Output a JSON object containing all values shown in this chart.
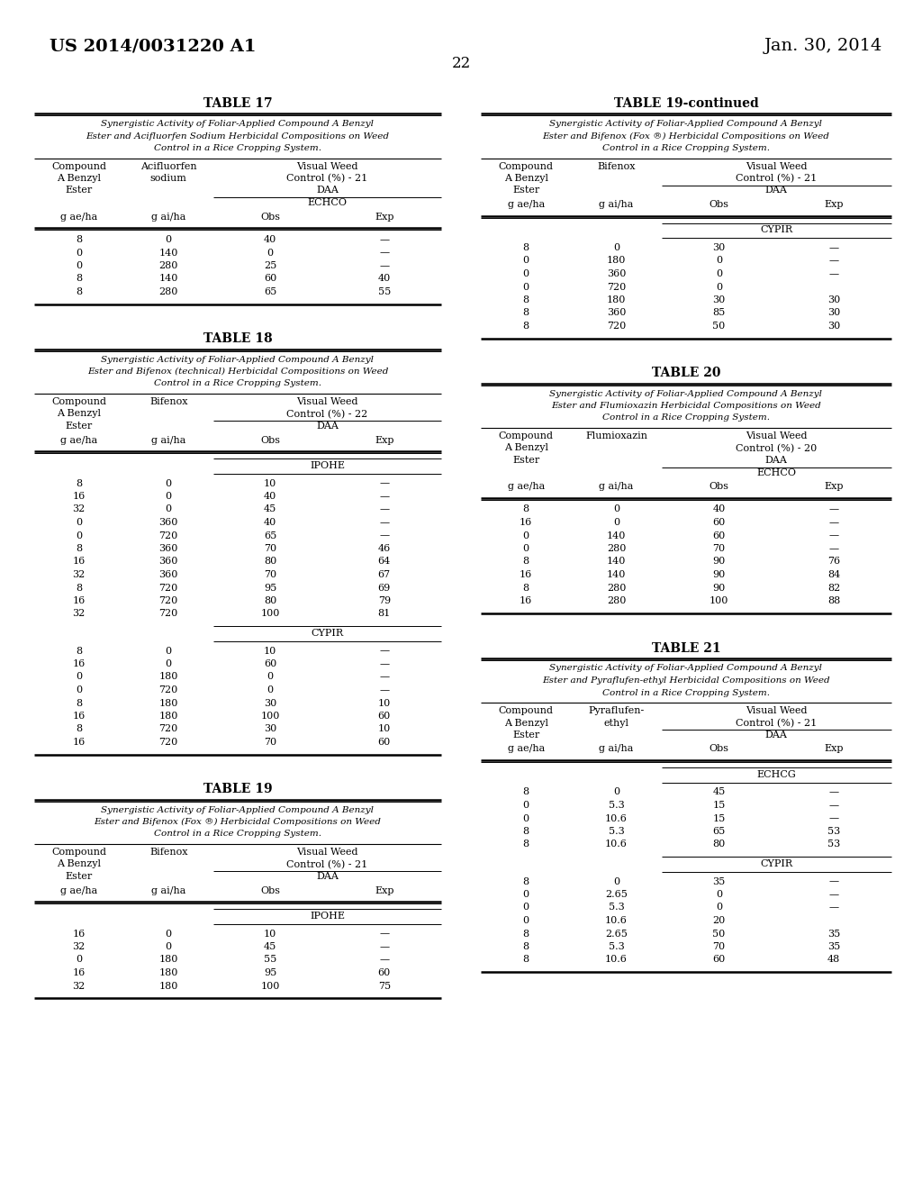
{
  "page_number": "22",
  "patent_left": "US 2014/0031220 A1",
  "patent_right": "Jan. 30, 2014",
  "tables": [
    {
      "id": "TABLE 17",
      "subtitle": [
        "Synergistic Activity of Foliar-Applied Compound A Benzyl",
        "Ester and Acifluorfen Sodium Herbicidal Compositions on Weed",
        "Control in a Rice Cropping System."
      ],
      "col1_header": [
        "Compound",
        "A Benzyl",
        "Ester"
      ],
      "col2_header": [
        "Acifluorfen",
        "sodium"
      ],
      "col34_header": [
        "Visual Weed",
        "Control (%) - 21",
        "DAA",
        "ECHCO"
      ],
      "col1_unit": "g ae/ha",
      "col2_unit": "g ai/ha",
      "col3_unit": "Obs",
      "col4_unit": "Exp",
      "sections": [
        {
          "label": null,
          "rows": [
            [
              "8",
              "0",
              "40",
              "—"
            ],
            [
              "0",
              "140",
              "0",
              "—"
            ],
            [
              "0",
              "280",
              "25",
              "—"
            ],
            [
              "8",
              "140",
              "60",
              "40"
            ],
            [
              "8",
              "280",
              "65",
              "55"
            ]
          ]
        }
      ]
    },
    {
      "id": "TABLE 18",
      "subtitle": [
        "Synergistic Activity of Foliar-Applied Compound A Benzyl",
        "Ester and Bifenox (technical) Herbicidal Compositions on Weed",
        "Control in a Rice Cropping System."
      ],
      "col1_header": [
        "Compound",
        "A Benzyl",
        "Ester"
      ],
      "col2_header": [
        "Bifenox"
      ],
      "col34_header": [
        "Visual Weed",
        "Control (%) - 22",
        "DAA"
      ],
      "col1_unit": "g ae/ha",
      "col2_unit": "g ai/ha",
      "col3_unit": "Obs",
      "col4_unit": "Exp",
      "sections": [
        {
          "label": "IPOHE",
          "rows": [
            [
              "8",
              "0",
              "10",
              "—"
            ],
            [
              "16",
              "0",
              "40",
              "—"
            ],
            [
              "32",
              "0",
              "45",
              "—"
            ],
            [
              "0",
              "360",
              "40",
              "—"
            ],
            [
              "0",
              "720",
              "65",
              "—"
            ],
            [
              "8",
              "360",
              "70",
              "46"
            ],
            [
              "16",
              "360",
              "80",
              "64"
            ],
            [
              "32",
              "360",
              "70",
              "67"
            ],
            [
              "8",
              "720",
              "95",
              "69"
            ],
            [
              "16",
              "720",
              "80",
              "79"
            ],
            [
              "32",
              "720",
              "100",
              "81"
            ]
          ]
        },
        {
          "label": "CYPIR",
          "rows": [
            [
              "8",
              "0",
              "10",
              "—"
            ],
            [
              "16",
              "0",
              "60",
              "—"
            ],
            [
              "0",
              "180",
              "0",
              "—"
            ],
            [
              "0",
              "720",
              "0",
              "—"
            ],
            [
              "8",
              "180",
              "30",
              "10"
            ],
            [
              "16",
              "180",
              "100",
              "60"
            ],
            [
              "8",
              "720",
              "30",
              "10"
            ],
            [
              "16",
              "720",
              "70",
              "60"
            ]
          ]
        }
      ]
    },
    {
      "id": "TABLE 19",
      "subtitle": [
        "Synergistic Activity of Foliar-Applied Compound A Benzyl",
        "Ester and Bifenox (Fox ®) Herbicidal Compositions on Weed",
        "Control in a Rice Cropping System."
      ],
      "col1_header": [
        "Compound",
        "A Benzyl",
        "Ester"
      ],
      "col2_header": [
        "Bifenox"
      ],
      "col34_header": [
        "Visual Weed",
        "Control (%) - 21",
        "DAA"
      ],
      "col1_unit": "g ae/ha",
      "col2_unit": "g ai/ha",
      "col3_unit": "Obs",
      "col4_unit": "Exp",
      "sections": [
        {
          "label": "IPOHE",
          "rows": [
            [
              "16",
              "0",
              "10",
              "—"
            ],
            [
              "32",
              "0",
              "45",
              "—"
            ],
            [
              "0",
              "180",
              "55",
              "—"
            ],
            [
              "16",
              "180",
              "95",
              "60"
            ],
            [
              "32",
              "180",
              "100",
              "75"
            ]
          ]
        }
      ]
    },
    {
      "id": "TABLE 19-continued",
      "subtitle": [
        "Synergistic Activity of Foliar-Applied Compound A Benzyl",
        "Ester and Bifenox (Fox ®) Herbicidal Compositions on Weed",
        "Control in a Rice Cropping System."
      ],
      "col1_header": [
        "Compound",
        "A Benzyl",
        "Ester"
      ],
      "col2_header": [
        "Bifenox"
      ],
      "col34_header": [
        "Visual Weed",
        "Control (%) - 21",
        "DAA"
      ],
      "col1_unit": "g ae/ha",
      "col2_unit": "g ai/ha",
      "col3_unit": "Obs",
      "col4_unit": "Exp",
      "sections": [
        {
          "label": "CYPIR",
          "rows": [
            [
              "8",
              "0",
              "30",
              "—"
            ],
            [
              "0",
              "180",
              "0",
              "—"
            ],
            [
              "0",
              "360",
              "0",
              "—"
            ],
            [
              "0",
              "720",
              "0",
              ""
            ],
            [
              "8",
              "180",
              "30",
              "30"
            ],
            [
              "8",
              "360",
              "85",
              "30"
            ],
            [
              "8",
              "720",
              "50",
              "30"
            ]
          ]
        }
      ]
    },
    {
      "id": "TABLE 20",
      "subtitle": [
        "Synergistic Activity of Foliar-Applied Compound A Benzyl",
        "Ester and Flumioxazin Herbicidal Compositions on Weed",
        "Control in a Rice Cropping System."
      ],
      "col1_header": [
        "Compound",
        "A Benzyl",
        "Ester"
      ],
      "col2_header": [
        "Flumioxazin"
      ],
      "col34_header": [
        "Visual Weed",
        "Control (%) - 20",
        "DAA",
        "ECHCO"
      ],
      "col1_unit": "g ae/ha",
      "col2_unit": "g ai/ha",
      "col3_unit": "Obs",
      "col4_unit": "Exp",
      "sections": [
        {
          "label": null,
          "rows": [
            [
              "8",
              "0",
              "40",
              "—"
            ],
            [
              "16",
              "0",
              "60",
              "—"
            ],
            [
              "0",
              "140",
              "60",
              "—"
            ],
            [
              "0",
              "280",
              "70",
              "—"
            ],
            [
              "8",
              "140",
              "90",
              "76"
            ],
            [
              "16",
              "140",
              "90",
              "84"
            ],
            [
              "8",
              "280",
              "90",
              "82"
            ],
            [
              "16",
              "280",
              "100",
              "88"
            ]
          ]
        }
      ]
    },
    {
      "id": "TABLE 21",
      "subtitle": [
        "Synergistic Activity of Foliar-Applied Compound A Benzyl",
        "Ester and Pyraflufen-ethyl Herbicidal Compositions on Weed",
        "Control in a Rice Cropping System."
      ],
      "col1_header": [
        "Compound",
        "A Benzyl",
        "Ester"
      ],
      "col2_header": [
        "Pyraflufen-",
        "ethyl"
      ],
      "col34_header": [
        "Visual Weed",
        "Control (%) - 21",
        "DAA"
      ],
      "col1_unit": "g ae/ha",
      "col2_unit": "g ai/ha",
      "col3_unit": "Obs",
      "col4_unit": "Exp",
      "sections": [
        {
          "label": "ECHCG",
          "rows": [
            [
              "8",
              "0",
              "45",
              "—"
            ],
            [
              "0",
              "5.3",
              "15",
              "—"
            ],
            [
              "0",
              "10.6",
              "15",
              "—"
            ],
            [
              "8",
              "5.3",
              "65",
              "53"
            ],
            [
              "8",
              "10.6",
              "80",
              "53"
            ]
          ]
        },
        {
          "label": "CYPIR",
          "rows": [
            [
              "8",
              "0",
              "35",
              "—"
            ],
            [
              "0",
              "2.65",
              "0",
              "—"
            ],
            [
              "0",
              "5.3",
              "0",
              "—"
            ],
            [
              "0",
              "10.6",
              "20",
              ""
            ],
            [
              "8",
              "2.65",
              "50",
              "35"
            ],
            [
              "8",
              "5.3",
              "70",
              "35"
            ],
            [
              "8",
              "10.6",
              "60",
              "48"
            ]
          ]
        }
      ]
    }
  ]
}
